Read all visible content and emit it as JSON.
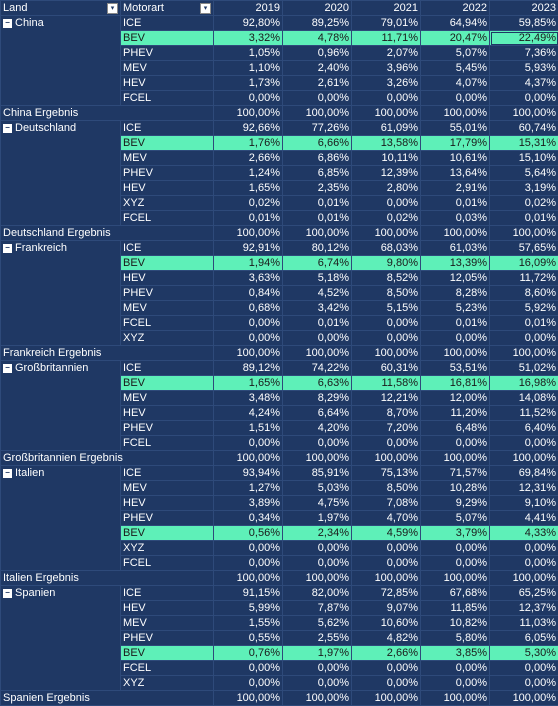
{
  "header": {
    "col0": "Land",
    "col1": "Motorart",
    "years": [
      "2019",
      "2020",
      "2021",
      "2022",
      "2023"
    ]
  },
  "groups": [
    {
      "country": "China",
      "rows": [
        {
          "m": "ICE",
          "v": [
            "92,80%",
            "89,25%",
            "79,01%",
            "64,94%",
            "59,85%"
          ]
        },
        {
          "m": "BEV",
          "v": [
            "3,32%",
            "4,78%",
            "11,71%",
            "20,47%",
            "22,49%"
          ]
        },
        {
          "m": "PHEV",
          "v": [
            "1,05%",
            "0,96%",
            "2,07%",
            "5,07%",
            "7,36%"
          ]
        },
        {
          "m": "MEV",
          "v": [
            "1,10%",
            "2,40%",
            "3,96%",
            "5,45%",
            "5,93%"
          ]
        },
        {
          "m": "HEV",
          "v": [
            "1,73%",
            "2,61%",
            "3,26%",
            "4,07%",
            "4,37%"
          ]
        },
        {
          "m": "FCEL",
          "v": [
            "0,00%",
            "0,00%",
            "0,00%",
            "0,00%",
            "0,00%"
          ]
        }
      ],
      "total": "China Ergebnis"
    },
    {
      "country": "Deutschland",
      "rows": [
        {
          "m": "ICE",
          "v": [
            "92,66%",
            "77,26%",
            "61,09%",
            "55,01%",
            "60,74%"
          ]
        },
        {
          "m": "BEV",
          "v": [
            "1,76%",
            "6,66%",
            "13,58%",
            "17,79%",
            "15,31%"
          ]
        },
        {
          "m": "MEV",
          "v": [
            "2,66%",
            "6,86%",
            "10,11%",
            "10,61%",
            "15,10%"
          ]
        },
        {
          "m": "PHEV",
          "v": [
            "1,24%",
            "6,85%",
            "12,39%",
            "13,64%",
            "5,64%"
          ]
        },
        {
          "m": "HEV",
          "v": [
            "1,65%",
            "2,35%",
            "2,80%",
            "2,91%",
            "3,19%"
          ]
        },
        {
          "m": "XYZ",
          "v": [
            "0,02%",
            "0,01%",
            "0,00%",
            "0,01%",
            "0,02%"
          ]
        },
        {
          "m": "FCEL",
          "v": [
            "0,01%",
            "0,01%",
            "0,02%",
            "0,03%",
            "0,01%"
          ]
        }
      ],
      "total": "Deutschland Ergebnis"
    },
    {
      "country": "Frankreich",
      "rows": [
        {
          "m": "ICE",
          "v": [
            "92,91%",
            "80,12%",
            "68,03%",
            "61,03%",
            "57,65%"
          ]
        },
        {
          "m": "BEV",
          "v": [
            "1,94%",
            "6,74%",
            "9,80%",
            "13,39%",
            "16,09%"
          ]
        },
        {
          "m": "HEV",
          "v": [
            "3,63%",
            "5,18%",
            "8,52%",
            "12,05%",
            "11,72%"
          ]
        },
        {
          "m": "PHEV",
          "v": [
            "0,84%",
            "4,52%",
            "8,50%",
            "8,28%",
            "8,60%"
          ]
        },
        {
          "m": "MEV",
          "v": [
            "0,68%",
            "3,42%",
            "5,15%",
            "5,23%",
            "5,92%"
          ]
        },
        {
          "m": "FCEL",
          "v": [
            "0,00%",
            "0,01%",
            "0,00%",
            "0,01%",
            "0,01%"
          ]
        },
        {
          "m": "XYZ",
          "v": [
            "0,00%",
            "0,00%",
            "0,00%",
            "0,00%",
            "0,00%"
          ]
        }
      ],
      "total": "Frankreich Ergebnis"
    },
    {
      "country": "Großbritannien",
      "rows": [
        {
          "m": "ICE",
          "v": [
            "89,12%",
            "74,22%",
            "60,31%",
            "53,51%",
            "51,02%"
          ]
        },
        {
          "m": "BEV",
          "v": [
            "1,65%",
            "6,63%",
            "11,58%",
            "16,81%",
            "16,98%"
          ]
        },
        {
          "m": "MEV",
          "v": [
            "3,48%",
            "8,29%",
            "12,21%",
            "12,00%",
            "14,08%"
          ]
        },
        {
          "m": "HEV",
          "v": [
            "4,24%",
            "6,64%",
            "8,70%",
            "11,20%",
            "11,52%"
          ]
        },
        {
          "m": "PHEV",
          "v": [
            "1,51%",
            "4,20%",
            "7,20%",
            "6,48%",
            "6,40%"
          ]
        },
        {
          "m": "FCEL",
          "v": [
            "0,00%",
            "0,00%",
            "0,00%",
            "0,00%",
            "0,00%"
          ]
        }
      ],
      "total": "Großbritannien Ergebnis"
    },
    {
      "country": "Italien",
      "rows": [
        {
          "m": "ICE",
          "v": [
            "93,94%",
            "85,91%",
            "75,13%",
            "71,57%",
            "69,84%"
          ]
        },
        {
          "m": "MEV",
          "v": [
            "1,27%",
            "5,03%",
            "8,50%",
            "10,28%",
            "12,31%"
          ]
        },
        {
          "m": "HEV",
          "v": [
            "3,89%",
            "4,75%",
            "7,08%",
            "9,29%",
            "9,10%"
          ]
        },
        {
          "m": "PHEV",
          "v": [
            "0,34%",
            "1,97%",
            "4,70%",
            "5,07%",
            "4,41%"
          ]
        },
        {
          "m": "BEV",
          "v": [
            "0,56%",
            "2,34%",
            "4,59%",
            "3,79%",
            "4,33%"
          ]
        },
        {
          "m": "XYZ",
          "v": [
            "0,00%",
            "0,00%",
            "0,00%",
            "0,00%",
            "0,00%"
          ]
        },
        {
          "m": "FCEL",
          "v": [
            "0,00%",
            "0,00%",
            "0,00%",
            "0,00%",
            "0,00%"
          ]
        }
      ],
      "total": "Italien Ergebnis"
    },
    {
      "country": "Spanien",
      "rows": [
        {
          "m": "ICE",
          "v": [
            "91,15%",
            "82,00%",
            "72,85%",
            "67,68%",
            "65,25%"
          ]
        },
        {
          "m": "HEV",
          "v": [
            "5,99%",
            "7,87%",
            "9,07%",
            "11,85%",
            "12,37%"
          ]
        },
        {
          "m": "MEV",
          "v": [
            "1,55%",
            "5,62%",
            "10,60%",
            "10,82%",
            "11,03%"
          ]
        },
        {
          "m": "PHEV",
          "v": [
            "0,55%",
            "2,55%",
            "4,82%",
            "5,80%",
            "6,05%"
          ]
        },
        {
          "m": "BEV",
          "v": [
            "0,76%",
            "1,97%",
            "2,66%",
            "3,85%",
            "5,30%"
          ]
        },
        {
          "m": "FCEL",
          "v": [
            "0,00%",
            "0,00%",
            "0,00%",
            "0,00%",
            "0,00%"
          ]
        },
        {
          "m": "XYZ",
          "v": [
            "0,00%",
            "0,00%",
            "0,00%",
            "0,00%",
            "0,00%"
          ]
        }
      ],
      "total": "Spanien Ergebnis"
    }
  ],
  "total_value": "100,00%",
  "colors": {
    "background": "#1f3864",
    "bev_highlight": "#5ef0b8"
  },
  "icons": {
    "filter": "filter-icon",
    "collapse": "collapse-minus-icon"
  }
}
